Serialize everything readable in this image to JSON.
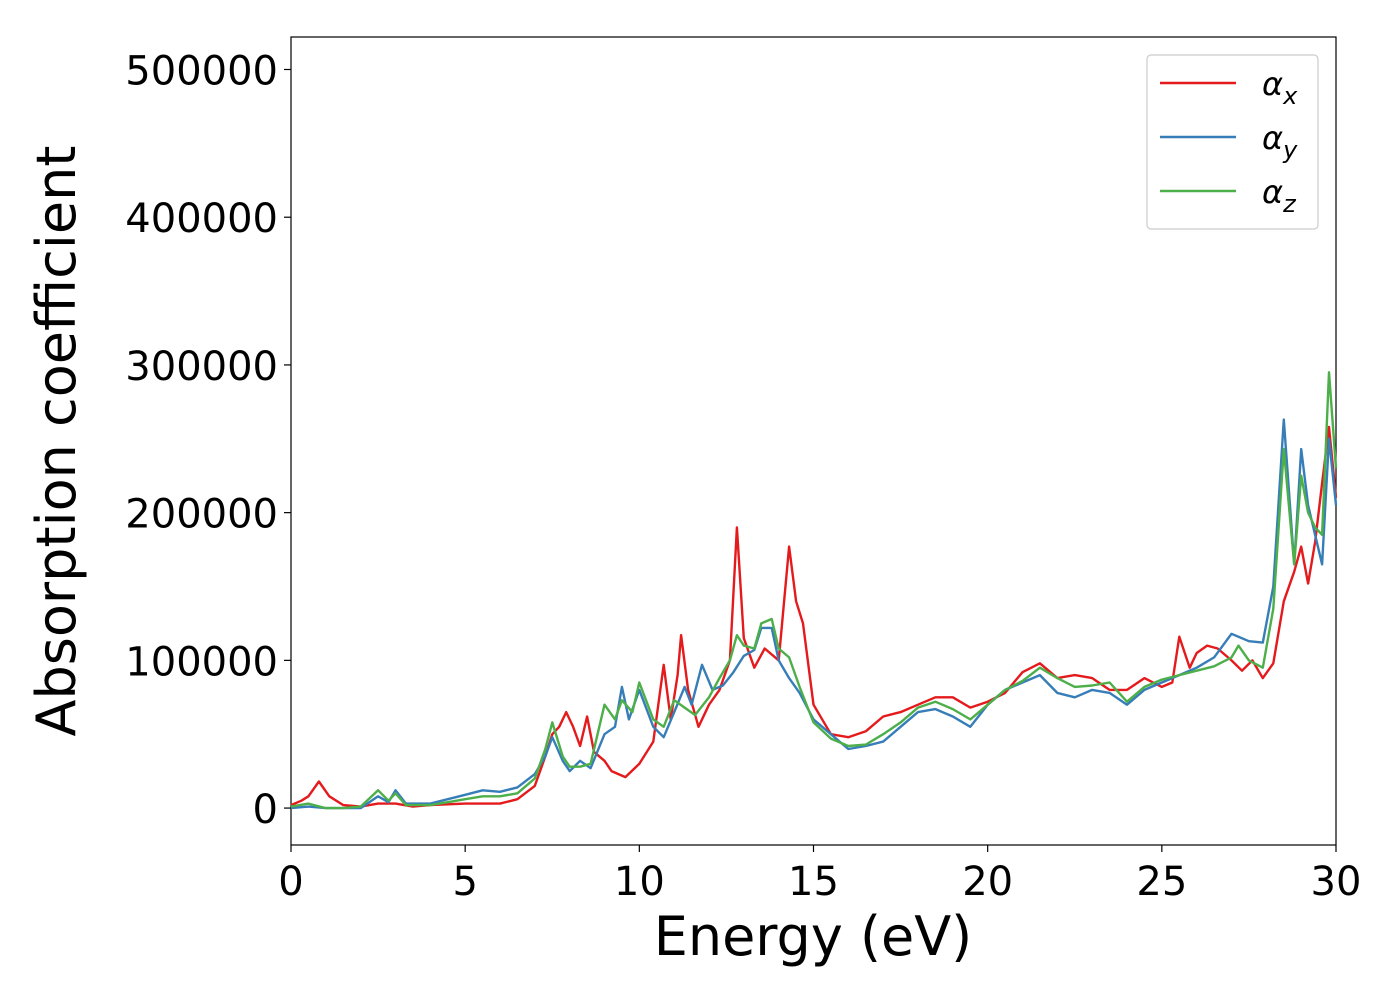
{
  "chart_data": {
    "type": "line",
    "title": "",
    "xlabel": "Energy (eV)",
    "ylabel": "Absorption coefficient",
    "xlim": [
      0,
      30
    ],
    "ylim": [
      -25000,
      522000
    ],
    "xticks": [
      0,
      5,
      10,
      15,
      20,
      25,
      30
    ],
    "yticks": [
      0,
      100000,
      200000,
      300000,
      400000,
      500000
    ],
    "xtick_labels": [
      "0",
      "5",
      "10",
      "15",
      "20",
      "25",
      "30"
    ],
    "ytick_labels": [
      "0",
      "100000",
      "200000",
      "300000",
      "400000",
      "500000"
    ],
    "grid": false,
    "legend": {
      "position": "top-right"
    },
    "series": [
      {
        "name": "α",
        "subscript": "x",
        "color": "#e41a1c",
        "points": [
          [
            0,
            2000
          ],
          [
            0.3,
            5000
          ],
          [
            0.5,
            8000
          ],
          [
            0.8,
            18000
          ],
          [
            1.1,
            8000
          ],
          [
            1.5,
            2000
          ],
          [
            2,
            1000
          ],
          [
            2.5,
            3000
          ],
          [
            3,
            3000
          ],
          [
            3.5,
            1000
          ],
          [
            4,
            2000
          ],
          [
            5,
            3000
          ],
          [
            6,
            3000
          ],
          [
            6.5,
            6000
          ],
          [
            7,
            15000
          ],
          [
            7.3,
            35000
          ],
          [
            7.5,
            50000
          ],
          [
            7.7,
            55000
          ],
          [
            7.9,
            65000
          ],
          [
            8.1,
            55000
          ],
          [
            8.3,
            42000
          ],
          [
            8.5,
            62000
          ],
          [
            8.7,
            38000
          ],
          [
            9,
            32000
          ],
          [
            9.2,
            25000
          ],
          [
            9.6,
            21000
          ],
          [
            10,
            30000
          ],
          [
            10.4,
            45000
          ],
          [
            10.7,
            97000
          ],
          [
            10.9,
            60000
          ],
          [
            11.1,
            90000
          ],
          [
            11.2,
            117000
          ],
          [
            11.4,
            80000
          ],
          [
            11.7,
            55000
          ],
          [
            12,
            70000
          ],
          [
            12.3,
            80000
          ],
          [
            12.6,
            100000
          ],
          [
            12.8,
            190000
          ],
          [
            13,
            115000
          ],
          [
            13.3,
            95000
          ],
          [
            13.6,
            108000
          ],
          [
            14,
            100000
          ],
          [
            14.3,
            177000
          ],
          [
            14.5,
            140000
          ],
          [
            14.7,
            125000
          ],
          [
            15,
            70000
          ],
          [
            15.5,
            50000
          ],
          [
            16,
            48000
          ],
          [
            16.5,
            52000
          ],
          [
            17,
            62000
          ],
          [
            17.5,
            65000
          ],
          [
            18,
            70000
          ],
          [
            18.5,
            75000
          ],
          [
            19,
            75000
          ],
          [
            19.5,
            68000
          ],
          [
            20,
            72000
          ],
          [
            20.5,
            78000
          ],
          [
            21,
            92000
          ],
          [
            21.5,
            98000
          ],
          [
            22,
            88000
          ],
          [
            22.5,
            90000
          ],
          [
            23,
            88000
          ],
          [
            23.5,
            80000
          ],
          [
            24,
            80000
          ],
          [
            24.5,
            88000
          ],
          [
            25,
            82000
          ],
          [
            25.3,
            85000
          ],
          [
            25.5,
            116000
          ],
          [
            25.8,
            95000
          ],
          [
            26,
            105000
          ],
          [
            26.3,
            110000
          ],
          [
            26.6,
            108000
          ],
          [
            27,
            100000
          ],
          [
            27.3,
            93000
          ],
          [
            27.6,
            100000
          ],
          [
            27.9,
            88000
          ],
          [
            28.2,
            98000
          ],
          [
            28.5,
            140000
          ],
          [
            28.8,
            160000
          ],
          [
            29,
            177000
          ],
          [
            29.2,
            152000
          ],
          [
            29.4,
            180000
          ],
          [
            29.6,
            220000
          ],
          [
            29.8,
            258000
          ],
          [
            30,
            210000
          ]
        ]
      },
      {
        "name": "α",
        "subscript": "y",
        "color": "#377eb8",
        "points": [
          [
            0,
            0
          ],
          [
            0.5,
            1000
          ],
          [
            1,
            0
          ],
          [
            1.5,
            0
          ],
          [
            2,
            0
          ],
          [
            2.5,
            8000
          ],
          [
            2.8,
            4000
          ],
          [
            3,
            12000
          ],
          [
            3.3,
            3000
          ],
          [
            4,
            3000
          ],
          [
            4.5,
            6000
          ],
          [
            5,
            9000
          ],
          [
            5.5,
            12000
          ],
          [
            6,
            11000
          ],
          [
            6.5,
            14000
          ],
          [
            7,
            23000
          ],
          [
            7.3,
            35000
          ],
          [
            7.5,
            48000
          ],
          [
            7.8,
            32000
          ],
          [
            8,
            25000
          ],
          [
            8.3,
            32000
          ],
          [
            8.6,
            27000
          ],
          [
            9,
            50000
          ],
          [
            9.3,
            55000
          ],
          [
            9.5,
            82000
          ],
          [
            9.7,
            60000
          ],
          [
            10,
            80000
          ],
          [
            10.4,
            55000
          ],
          [
            10.7,
            48000
          ],
          [
            11,
            65000
          ],
          [
            11.3,
            82000
          ],
          [
            11.5,
            70000
          ],
          [
            11.8,
            97000
          ],
          [
            12.1,
            80000
          ],
          [
            12.4,
            83000
          ],
          [
            12.7,
            92000
          ],
          [
            13,
            103000
          ],
          [
            13.3,
            107000
          ],
          [
            13.5,
            122000
          ],
          [
            13.8,
            122000
          ],
          [
            14,
            100000
          ],
          [
            14.3,
            88000
          ],
          [
            14.6,
            78000
          ],
          [
            15,
            60000
          ],
          [
            15.5,
            50000
          ],
          [
            16,
            40000
          ],
          [
            16.5,
            42000
          ],
          [
            17,
            45000
          ],
          [
            17.5,
            55000
          ],
          [
            18,
            65000
          ],
          [
            18.5,
            67000
          ],
          [
            19,
            62000
          ],
          [
            19.5,
            55000
          ],
          [
            20,
            70000
          ],
          [
            20.5,
            80000
          ],
          [
            21,
            85000
          ],
          [
            21.5,
            90000
          ],
          [
            22,
            78000
          ],
          [
            22.5,
            75000
          ],
          [
            23,
            80000
          ],
          [
            23.5,
            78000
          ],
          [
            24,
            70000
          ],
          [
            24.5,
            80000
          ],
          [
            25,
            85000
          ],
          [
            25.5,
            90000
          ],
          [
            26,
            95000
          ],
          [
            26.5,
            102000
          ],
          [
            27,
            118000
          ],
          [
            27.5,
            113000
          ],
          [
            27.9,
            112000
          ],
          [
            28.2,
            150000
          ],
          [
            28.5,
            263000
          ],
          [
            28.8,
            165000
          ],
          [
            29,
            243000
          ],
          [
            29.2,
            205000
          ],
          [
            29.4,
            185000
          ],
          [
            29.6,
            165000
          ],
          [
            29.8,
            250000
          ],
          [
            30,
            205000
          ]
        ]
      },
      {
        "name": "α",
        "subscript": "z",
        "color": "#4daf4a",
        "points": [
          [
            0,
            1000
          ],
          [
            0.5,
            3000
          ],
          [
            1,
            0
          ],
          [
            1.5,
            0
          ],
          [
            2,
            1000
          ],
          [
            2.5,
            12000
          ],
          [
            2.8,
            5000
          ],
          [
            3,
            10000
          ],
          [
            3.3,
            2000
          ],
          [
            4,
            2000
          ],
          [
            4.5,
            4000
          ],
          [
            5,
            6000
          ],
          [
            5.5,
            8000
          ],
          [
            6,
            8000
          ],
          [
            6.5,
            10000
          ],
          [
            7,
            20000
          ],
          [
            7.3,
            40000
          ],
          [
            7.5,
            58000
          ],
          [
            7.8,
            35000
          ],
          [
            8,
            28000
          ],
          [
            8.3,
            28000
          ],
          [
            8.6,
            30000
          ],
          [
            9,
            70000
          ],
          [
            9.3,
            60000
          ],
          [
            9.5,
            73000
          ],
          [
            9.8,
            65000
          ],
          [
            10,
            85000
          ],
          [
            10.4,
            60000
          ],
          [
            10.7,
            55000
          ],
          [
            11,
            73000
          ],
          [
            11.3,
            68000
          ],
          [
            11.6,
            63000
          ],
          [
            12,
            75000
          ],
          [
            12.3,
            88000
          ],
          [
            12.6,
            100000
          ],
          [
            12.8,
            117000
          ],
          [
            13,
            110000
          ],
          [
            13.3,
            108000
          ],
          [
            13.5,
            125000
          ],
          [
            13.8,
            128000
          ],
          [
            14,
            108000
          ],
          [
            14.3,
            102000
          ],
          [
            14.6,
            82000
          ],
          [
            15,
            58000
          ],
          [
            15.5,
            47000
          ],
          [
            16,
            42000
          ],
          [
            16.5,
            43000
          ],
          [
            17,
            50000
          ],
          [
            17.5,
            58000
          ],
          [
            18,
            68000
          ],
          [
            18.5,
            72000
          ],
          [
            19,
            67000
          ],
          [
            19.5,
            60000
          ],
          [
            20,
            70000
          ],
          [
            20.5,
            80000
          ],
          [
            21,
            86000
          ],
          [
            21.5,
            95000
          ],
          [
            22,
            88000
          ],
          [
            22.5,
            82000
          ],
          [
            23,
            83000
          ],
          [
            23.5,
            85000
          ],
          [
            24,
            72000
          ],
          [
            24.5,
            82000
          ],
          [
            25,
            87000
          ],
          [
            25.5,
            90000
          ],
          [
            26,
            93000
          ],
          [
            26.5,
            96000
          ],
          [
            27,
            102000
          ],
          [
            27.2,
            110000
          ],
          [
            27.5,
            100000
          ],
          [
            27.9,
            95000
          ],
          [
            28.2,
            135000
          ],
          [
            28.5,
            243000
          ],
          [
            28.8,
            165000
          ],
          [
            29,
            225000
          ],
          [
            29.2,
            200000
          ],
          [
            29.4,
            190000
          ],
          [
            29.6,
            185000
          ],
          [
            29.8,
            295000
          ],
          [
            30,
            230000
          ]
        ]
      }
    ]
  }
}
